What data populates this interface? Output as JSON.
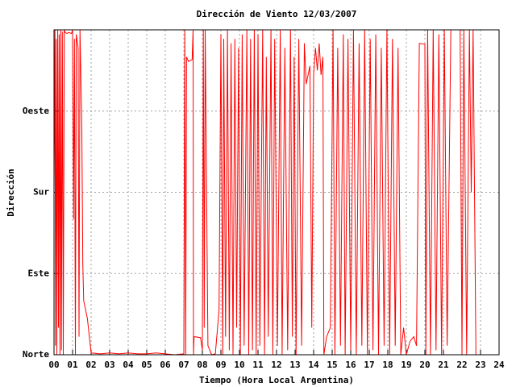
{
  "chart_data": {
    "type": "line",
    "title": "Dirección de Viento 12/03/2007",
    "xlabel": "Tiempo (Hora Local Argentina)",
    "ylabel": "Dirección",
    "color": "#ff0000",
    "grid": true,
    "xlim": [
      0,
      24
    ],
    "xticks": [
      {
        "value": 0,
        "label": "00"
      },
      {
        "value": 1,
        "label": "01"
      },
      {
        "value": 2,
        "label": "02"
      },
      {
        "value": 3,
        "label": "03"
      },
      {
        "value": 4,
        "label": "04"
      },
      {
        "value": 5,
        "label": "05"
      },
      {
        "value": 6,
        "label": "06"
      },
      {
        "value": 7,
        "label": "07"
      },
      {
        "value": 8,
        "label": "08"
      },
      {
        "value": 9,
        "label": "09"
      },
      {
        "value": 10,
        "label": "10"
      },
      {
        "value": 11,
        "label": "11"
      },
      {
        "value": 12,
        "label": "12"
      },
      {
        "value": 13,
        "label": "13"
      },
      {
        "value": 14,
        "label": "14"
      },
      {
        "value": 15,
        "label": "15"
      },
      {
        "value": 16,
        "label": "16"
      },
      {
        "value": 17,
        "label": "17"
      },
      {
        "value": 18,
        "label": "18"
      },
      {
        "value": 19,
        "label": "19"
      },
      {
        "value": 20,
        "label": "20"
      },
      {
        "value": 21,
        "label": "21"
      },
      {
        "value": 22,
        "label": "22"
      },
      {
        "value": 23,
        "label": "23"
      },
      {
        "value": 24,
        "label": "24"
      }
    ],
    "ylim": [
      0,
      360
    ],
    "yticks": [
      {
        "value": 0,
        "label": "Norte"
      },
      {
        "value": 90,
        "label": "Este"
      },
      {
        "value": 180,
        "label": "Sur"
      },
      {
        "value": 270,
        "label": "Oeste"
      }
    ],
    "x": [
      0.0,
      0.05,
      0.08,
      0.12,
      0.15,
      0.2,
      0.24,
      0.28,
      0.32,
      0.36,
      0.4,
      0.45,
      0.5,
      0.55,
      0.6,
      0.7,
      0.8,
      0.95,
      1.0,
      1.05,
      1.1,
      1.15,
      1.2,
      1.3,
      1.35,
      1.4,
      1.5,
      1.55,
      1.6,
      1.8,
      2.0,
      2.5,
      3.0,
      3.5,
      4.0,
      4.5,
      5.0,
      5.5,
      6.0,
      6.5,
      7.0,
      7.05,
      7.1,
      7.15,
      7.25,
      7.45,
      7.5,
      7.52,
      7.55,
      7.9,
      8.0,
      8.05,
      8.1,
      8.15,
      8.3,
      8.5,
      8.7,
      8.9,
      9.0,
      9.1,
      9.15,
      9.25,
      9.35,
      9.45,
      9.55,
      9.65,
      9.75,
      9.85,
      9.95,
      10.05,
      10.15,
      10.25,
      10.4,
      10.5,
      10.6,
      10.7,
      10.8,
      10.9,
      11.0,
      11.1,
      11.25,
      11.35,
      11.45,
      11.55,
      11.7,
      11.8,
      11.9,
      12.05,
      12.2,
      12.3,
      12.45,
      12.6,
      12.75,
      12.85,
      12.95,
      13.05,
      13.2,
      13.35,
      13.5,
      13.6,
      13.8,
      13.9,
      14.0,
      14.1,
      14.2,
      14.3,
      14.4,
      14.5,
      14.55,
      14.7,
      14.9,
      15.05,
      15.15,
      15.3,
      15.45,
      15.6,
      15.7,
      15.85,
      16.0,
      16.15,
      16.3,
      16.45,
      16.6,
      16.75,
      16.9,
      17.05,
      17.2,
      17.35,
      17.5,
      17.65,
      17.8,
      17.95,
      18.1,
      18.25,
      18.4,
      18.55,
      18.7,
      18.85,
      19.0,
      19.2,
      19.4,
      19.55,
      19.7,
      20.0,
      20.05,
      20.15,
      20.3,
      20.45,
      20.6,
      20.75,
      20.9,
      21.05,
      21.2,
      21.4,
      21.9,
      22.0,
      22.1,
      22.25,
      22.4,
      22.5,
      22.6,
      22.75
    ],
    "values": [
      180,
      360,
      10,
      350,
      0,
      360,
      30,
      355,
      0,
      360,
      5,
      358,
      0,
      360,
      357,
      356,
      357,
      356,
      360,
      150,
      350,
      0,
      355,
      340,
      20,
      360,
      250,
      100,
      60,
      40,
      2,
      1,
      2,
      1,
      2,
      1,
      1,
      2,
      1,
      0,
      1,
      360,
      0,
      330,
      325,
      327,
      360,
      0,
      20,
      19,
      5,
      360,
      30,
      360,
      10,
      0,
      1,
      50,
      355,
      0,
      350,
      20,
      360,
      5,
      345,
      0,
      350,
      30,
      340,
      0,
      355,
      10,
      360,
      0,
      350,
      5,
      360,
      0,
      355,
      10,
      360,
      0,
      330,
      20,
      360,
      0,
      350,
      10,
      360,
      0,
      340,
      5,
      360,
      20,
      330,
      0,
      350,
      10,
      345,
      300,
      320,
      30,
      310,
      340,
      315,
      345,
      310,
      330,
      0,
      20,
      30,
      360,
      0,
      340,
      10,
      355,
      0,
      350,
      5,
      360,
      0,
      345,
      10,
      360,
      0,
      350,
      5,
      355,
      0,
      340,
      10,
      360,
      0,
      350,
      10,
      340,
      0,
      30,
      0,
      15,
      20,
      10,
      345,
      344,
      0,
      360,
      0,
      360,
      5,
      355,
      0,
      360,
      10,
      360,
      360,
      0,
      360,
      0,
      360,
      180,
      360,
      0
    ]
  }
}
